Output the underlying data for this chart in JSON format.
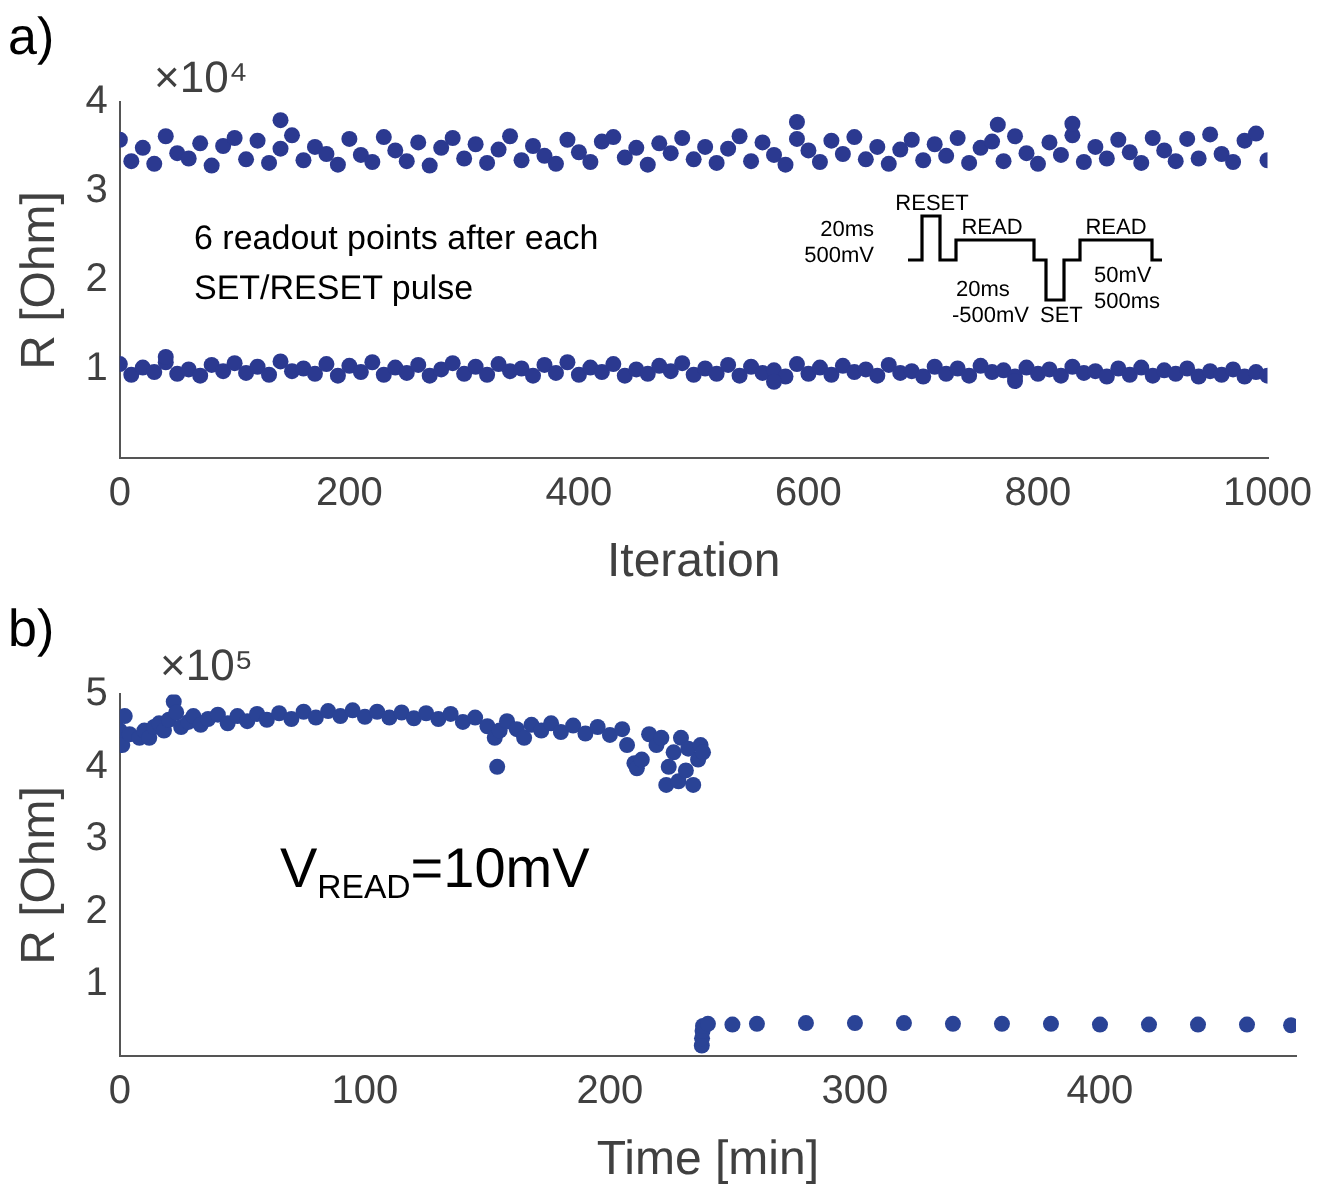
{
  "chart_data": [
    {
      "type": "scatter",
      "title": "a)",
      "xlabel": "Iteration",
      "ylabel": "R [Ohm]",
      "xlim": [
        0,
        1000
      ],
      "xticks": [
        0,
        200,
        400,
        600,
        800,
        1000
      ],
      "ylim": [
        0,
        4
      ],
      "yticks": [
        1,
        2,
        3,
        4
      ],
      "marker": "circle",
      "grid": false,
      "legend": false,
      "annotations": [
        "×10⁴",
        "6 readout points after each SET/RESET pulse",
        "RESET",
        "20ms",
        "500mV",
        "READ",
        "20ms",
        "-500mV",
        "SET",
        "READ",
        "50mV",
        "500ms"
      ],
      "series": [
        {
          "color": "#2b3990",
          "x": [
            0,
            10,
            20,
            30,
            40,
            50,
            60,
            70,
            80,
            90,
            100,
            110,
            120,
            130,
            140,
            150,
            160,
            170,
            180,
            190,
            200,
            210,
            220,
            230,
            240,
            250,
            260,
            270,
            280,
            290,
            300,
            310,
            320,
            330,
            340,
            350,
            360,
            370,
            380,
            390,
            400,
            410,
            420,
            430,
            440,
            450,
            460,
            470,
            480,
            490,
            500,
            510,
            520,
            530,
            540,
            550,
            560,
            570,
            580,
            590,
            600,
            610,
            620,
            630,
            640,
            650,
            660,
            670,
            680,
            690,
            700,
            710,
            720,
            730,
            740,
            750,
            760,
            770,
            780,
            790,
            800,
            810,
            820,
            830,
            840,
            850,
            860,
            870,
            880,
            890,
            900,
            910,
            920,
            930,
            940,
            950,
            960,
            970,
            980,
            990,
            1000,
            140,
            590,
            765,
            830
          ],
          "values": [
            3.58,
            3.34,
            3.49,
            3.31,
            3.62,
            3.43,
            3.37,
            3.54,
            3.29,
            3.51,
            3.6,
            3.36,
            3.57,
            3.32,
            3.48,
            3.63,
            3.35,
            3.5,
            3.42,
            3.3,
            3.59,
            3.41,
            3.33,
            3.61,
            3.46,
            3.34,
            3.55,
            3.29,
            3.49,
            3.6,
            3.37,
            3.53,
            3.32,
            3.47,
            3.62,
            3.35,
            3.51,
            3.4,
            3.31,
            3.58,
            3.44,
            3.33,
            3.56,
            3.61,
            3.38,
            3.49,
            3.3,
            3.54,
            3.43,
            3.6,
            3.36,
            3.5,
            3.32,
            3.48,
            3.62,
            3.34,
            3.55,
            3.41,
            3.3,
            3.59,
            3.46,
            3.33,
            3.57,
            3.42,
            3.61,
            3.36,
            3.5,
            3.31,
            3.47,
            3.58,
            3.35,
            3.53,
            3.4,
            3.6,
            3.32,
            3.49,
            3.56,
            3.34,
            3.62,
            3.43,
            3.31,
            3.55,
            3.41,
            3.63,
            3.33,
            3.5,
            3.37,
            3.58,
            3.44,
            3.32,
            3.6,
            3.46,
            3.34,
            3.59,
            3.37,
            3.64,
            3.42,
            3.33,
            3.57,
            3.65,
            3.35,
            3.8,
            3.78,
            3.75,
            3.76
          ]
        },
        {
          "color": "#2b3990",
          "x": [
            0,
            10,
            20,
            30,
            40,
            50,
            60,
            70,
            80,
            90,
            100,
            110,
            120,
            130,
            140,
            150,
            160,
            170,
            180,
            190,
            200,
            210,
            220,
            230,
            240,
            250,
            260,
            270,
            280,
            290,
            300,
            310,
            320,
            330,
            340,
            350,
            360,
            370,
            380,
            390,
            400,
            410,
            420,
            430,
            440,
            450,
            460,
            470,
            480,
            490,
            500,
            510,
            520,
            530,
            540,
            550,
            560,
            570,
            580,
            590,
            600,
            610,
            620,
            630,
            640,
            650,
            660,
            670,
            680,
            690,
            700,
            710,
            720,
            730,
            740,
            750,
            760,
            770,
            780,
            790,
            800,
            810,
            820,
            830,
            840,
            850,
            860,
            870,
            880,
            890,
            900,
            910,
            920,
            930,
            940,
            950,
            960,
            970,
            980,
            990,
            1000,
            40,
            570,
            780
          ],
          "values": [
            1.06,
            0.94,
            1.02,
            0.97,
            1.08,
            0.95,
            1,
            0.93,
            1.05,
            0.98,
            1.07,
            0.96,
            1.03,
            0.94,
            1.09,
            0.98,
            1.01,
            0.95,
            1.06,
            0.93,
            1.04,
            0.97,
            1.08,
            0.94,
            1.02,
            0.96,
            1.05,
            0.93,
            1,
            1.07,
            0.95,
            1.03,
            0.94,
            1.06,
            0.98,
            1.01,
            0.93,
            1.05,
            0.96,
            1.08,
            0.94,
            1.02,
            0.97,
            1.06,
            0.93,
            1,
            0.95,
            1.04,
            0.98,
            1.07,
            0.94,
            1.01,
            0.95,
            1.05,
            0.93,
            1.03,
            0.96,
            0.99,
            0.92,
            1.06,
            0.95,
            1.02,
            0.94,
            1.04,
            0.97,
            1,
            0.93,
            1.05,
            0.96,
            0.98,
            0.92,
            1.03,
            0.95,
            1.01,
            0.93,
            1.04,
            0.97,
            0.99,
            0.92,
            1.02,
            0.95,
            1,
            0.93,
            1.03,
            0.96,
            0.98,
            0.92,
            1.01,
            0.94,
            1.02,
            0.93,
            0.99,
            0.95,
            1.01,
            0.92,
            0.98,
            0.94,
            1,
            0.92,
            0.97,
            0.93,
            1.14,
            0.86,
            0.87
          ]
        }
      ]
    },
    {
      "type": "scatter",
      "title": "b)",
      "xlabel": "Time [min]",
      "ylabel": "R [Ohm]",
      "xlim": [
        0,
        480
      ],
      "xticks": [
        0,
        100,
        200,
        300,
        400
      ],
      "ylim": [
        0,
        5
      ],
      "yticks": [
        1,
        2,
        3,
        4,
        5
      ],
      "marker": "circle",
      "grid": false,
      "legend": false,
      "annotations": [
        "×10⁵",
        "V$_{READ}$=10mV"
      ],
      "series": [
        {
          "color": "#2a4396",
          "x": [
            0,
            1,
            2,
            4,
            8,
            10,
            12,
            14,
            16,
            18,
            20,
            22,
            23,
            25,
            28,
            30,
            33,
            36,
            40,
            44,
            48,
            52,
            56,
            60,
            65,
            70,
            75,
            80,
            85,
            90,
            95,
            100,
            105,
            110,
            115,
            120,
            125,
            130,
            135,
            140,
            145,
            150,
            153,
            154,
            155,
            158,
            162,
            165,
            168,
            172,
            176,
            180,
            185,
            190,
            195,
            200,
            205,
            207,
            210,
            211,
            213,
            216,
            219,
            221,
            223,
            224,
            226,
            228,
            229,
            231,
            232,
            234,
            236,
            237,
            238,
            237.5,
            237.6,
            237.8,
            238,
            240,
            250,
            260,
            280,
            300,
            320,
            340,
            360,
            380,
            400,
            420,
            440,
            460,
            478
          ],
          "values": [
            4.5,
            4.3,
            4.7,
            4.45,
            4.4,
            4.5,
            4.4,
            4.55,
            4.6,
            4.5,
            4.65,
            4.9,
            4.75,
            4.55,
            4.62,
            4.7,
            4.58,
            4.66,
            4.72,
            4.6,
            4.7,
            4.63,
            4.73,
            4.65,
            4.74,
            4.66,
            4.76,
            4.68,
            4.77,
            4.7,
            4.78,
            4.69,
            4.76,
            4.68,
            4.75,
            4.67,
            4.74,
            4.66,
            4.73,
            4.62,
            4.68,
            4.56,
            4.4,
            4,
            4.5,
            4.63,
            4.52,
            4.4,
            4.58,
            4.5,
            4.6,
            4.48,
            4.57,
            4.46,
            4.55,
            4.44,
            4.52,
            4.3,
            4.05,
            3.98,
            4.1,
            4.45,
            4.3,
            4.4,
            3.75,
            4,
            4.2,
            3.8,
            4.4,
            3.95,
            4.25,
            3.75,
            4.1,
            4.3,
            4.2,
            0.15,
            0.25,
            0.35,
            0.42,
            0.45,
            0.44,
            0.45,
            0.46,
            0.46,
            0.46,
            0.45,
            0.45,
            0.45,
            0.44,
            0.44,
            0.44,
            0.44,
            0.43
          ]
        }
      ]
    }
  ]
}
